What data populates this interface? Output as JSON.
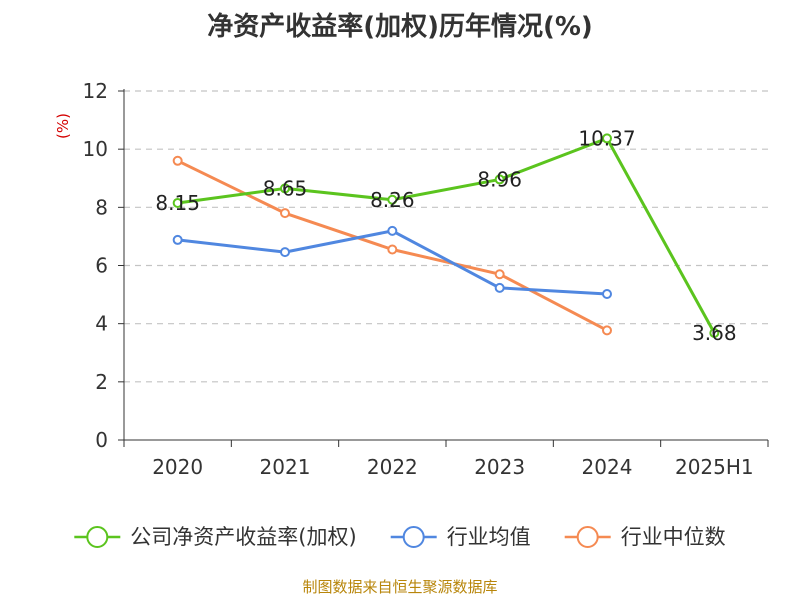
{
  "title": "净资产收益率(加权)历年情况(%)",
  "source": "制图数据来自恒生聚源数据库",
  "chart_data": {
    "type": "line",
    "title": "净资产收益率(加权)历年情况(%)",
    "ylabel": "(%)",
    "xlabel": "",
    "categories": [
      "2020",
      "2021",
      "2022",
      "2023",
      "2024",
      "2025H1"
    ],
    "ylim": [
      0,
      12
    ],
    "yticks": [
      "0",
      "2",
      "4",
      "6",
      "8",
      "10",
      "12"
    ],
    "grid": true,
    "legend_position": "bottom",
    "series": [
      {
        "name": "公司净资产收益率(加权)",
        "color": "#5bc41e",
        "values": [
          8.15,
          8.65,
          8.26,
          8.96,
          10.37,
          3.68
        ],
        "labels": [
          "8.15",
          "8.65",
          "8.26",
          "8.96",
          "10.37",
          "3.68"
        ]
      },
      {
        "name": "行业均值",
        "color": "#5087e0",
        "values": [
          6.88,
          6.46,
          7.19,
          5.23,
          5.02,
          null
        ]
      },
      {
        "name": "行业中位数",
        "color": "#f58a52",
        "values": [
          9.6,
          7.8,
          6.55,
          5.7,
          3.77,
          null
        ]
      }
    ]
  }
}
